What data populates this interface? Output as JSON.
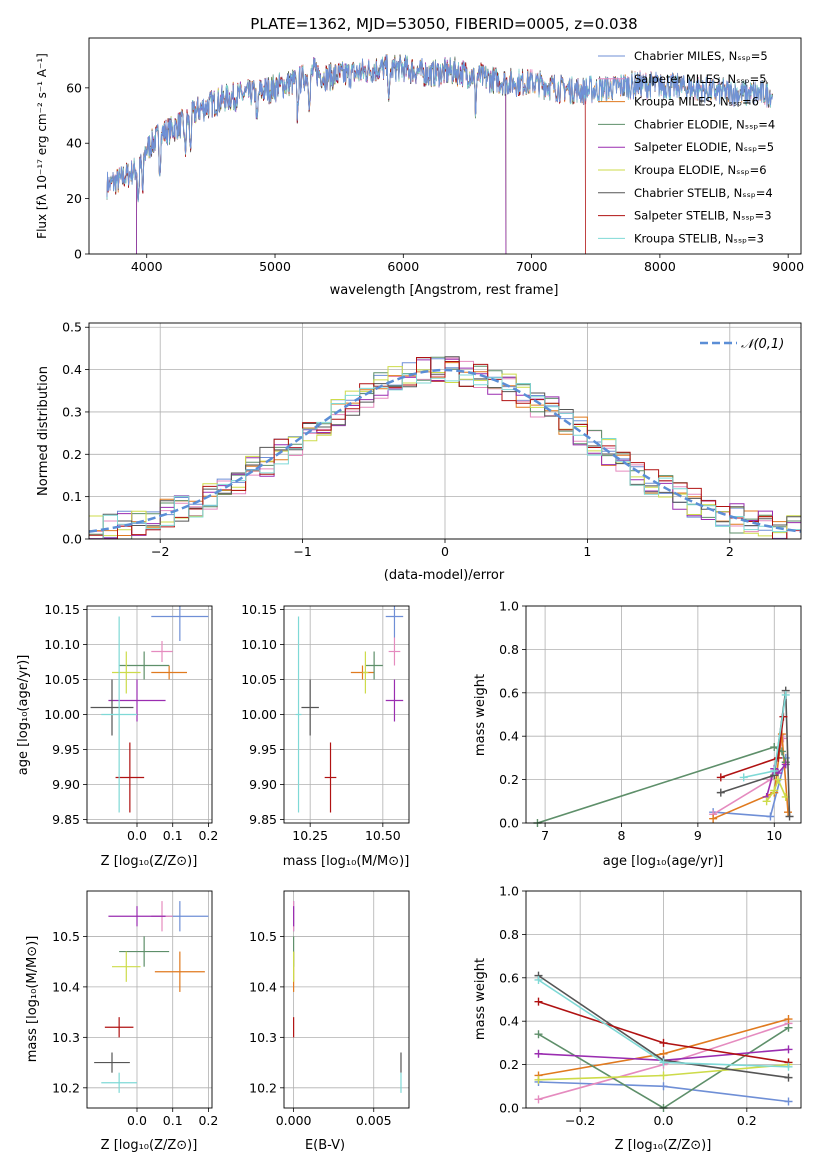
{
  "colors": [
    "#6f8fd6",
    "#e58bbf",
    "#e07a1f",
    "#5e8f6a",
    "#9a2db0",
    "#cddb4a",
    "#555555",
    "#b01212",
    "#7fd9d6"
  ],
  "chart_data": [
    {
      "id": "spectrum",
      "type": "line",
      "title": "PLATE=1362, MJD=53050, FIBERID=0005, z=0.038",
      "xlabel": "wavelength [Angstrom, rest frame]",
      "ylabel": "Flux [fλ 10⁻¹⁷ erg cm⁻² s⁻¹ A⁻¹]",
      "xlim": [
        3550,
        9100
      ],
      "ylim": [
        0,
        78
      ],
      "xticks": [
        4000,
        5000,
        6000,
        7000,
        8000,
        9000
      ],
      "yticks": [
        0,
        20,
        40,
        60
      ],
      "grid": false,
      "legend": "top-right",
      "series": [
        {
          "name": "Chabrier MILES, N_SSP=5"
        },
        {
          "name": "Salpeter MILES, N_SSP=5"
        },
        {
          "name": "Kroupa MILES, N_SSP=6"
        },
        {
          "name": "Chabrier ELODIE, N_SSP=4"
        },
        {
          "name": "Salpeter ELODIE, N_SSP=5"
        },
        {
          "name": "Kroupa ELODIE, N_SSP=6"
        },
        {
          "name": "Chabrier STELIB, N_SSP=4"
        },
        {
          "name": "Salpeter STELIB, N_SSP=3"
        },
        {
          "name": "Kroupa STELIB, N_SSP=3"
        }
      ],
      "continuum": {
        "x": [
          3700,
          3800,
          3900,
          3950,
          4000,
          4100,
          4200,
          4300,
          4400,
          4600,
          4800,
          5000,
          5200,
          5300,
          5400,
          5600,
          5800,
          6000,
          6200,
          6400,
          6600,
          6800,
          7000,
          7200,
          7400,
          7600,
          7800,
          8000,
          8200,
          8400,
          8600,
          8800
        ],
        "y": [
          25,
          27,
          30,
          32,
          38,
          43,
          45,
          48,
          52,
          56,
          58,
          60,
          63,
          66,
          64,
          65,
          67,
          67,
          65,
          66,
          64,
          62,
          62,
          60,
          59,
          60,
          61,
          61,
          60,
          59,
          58,
          58
        ]
      },
      "observed_range": [
        3690,
        8880
      ],
      "model_ranges": {
        "Kroupa ELODIE, N_SSP=6": [
          3920,
          6800
        ],
        "Salpeter STELIB, N_SSP=3": [
          3690,
          7420
        ],
        "Chabrier ELODIE, N_SSP=4": [
          3920,
          6800
        ],
        "Salpeter ELODIE, N_SSP=5": [
          3920,
          6800
        ]
      }
    },
    {
      "id": "residuals",
      "type": "histogram",
      "xlabel": "(data-model)/error",
      "ylabel": "Normed distribution",
      "xlim": [
        -2.5,
        2.5
      ],
      "ylim": [
        0,
        0.51
      ],
      "xticks": [
        -2,
        -1,
        0,
        1,
        2
      ],
      "yticks": [
        0.0,
        0.1,
        0.2,
        0.3,
        0.4,
        0.5
      ],
      "grid": true,
      "legend": "top-right",
      "reference_curve": {
        "name": "𝒩(0,1)",
        "mean": 0,
        "sigma": 1
      },
      "bin_edges_range": [
        -2.5,
        2.5
      ],
      "bin_count": 50
    },
    {
      "id": "age-vs-z",
      "type": "errorbar",
      "xlabel": "Z [log₁₀(Z/Z⊙)]",
      "ylabel": "age  [log₁₀(age/yr)]",
      "xlim": [
        -0.14,
        0.21
      ],
      "ylim": [
        9.845,
        10.155
      ],
      "xticks": [
        0.0,
        0.1,
        0.2
      ],
      "xtick_labels": [
        "0.0",
        "0.1",
        "0.2"
      ],
      "yticks": [
        9.85,
        9.9,
        9.95,
        10.0,
        10.05,
        10.1,
        10.15
      ],
      "grid": true,
      "points": [
        {
          "x": 0.12,
          "y": 10.14,
          "xerr": 0.08,
          "yerr": 0.035
        },
        {
          "x": 0.07,
          "y": 10.09,
          "xerr": 0.03,
          "yerr": 0.015
        },
        {
          "x": 0.09,
          "y": 10.06,
          "xerr": 0.05,
          "yerr": 0.01
        },
        {
          "x": 0.02,
          "y": 10.07,
          "xerr": 0.07,
          "yerr": 0.02
        },
        {
          "x": 0.0,
          "y": 10.02,
          "xerr": 0.08,
          "yerr": 0.03
        },
        {
          "x": -0.03,
          "y": 10.06,
          "xerr": 0.04,
          "yerr": 0.03
        },
        {
          "x": -0.07,
          "y": 10.01,
          "xerr": 0.06,
          "yerr": 0.04
        },
        {
          "x": -0.02,
          "y": 9.91,
          "xerr": 0.04,
          "yerr": 0.05
        },
        {
          "x": -0.05,
          "y": 10.0,
          "xerr": 0.05,
          "yerr": 0.14
        }
      ]
    },
    {
      "id": "age-vs-mass",
      "type": "errorbar",
      "xlabel": "mass [log₁₀(M/M⊙)]",
      "xlim": [
        10.16,
        10.59
      ],
      "ylim": [
        9.845,
        10.155
      ],
      "xticks": [
        10.25,
        10.5
      ],
      "xtick_labels": [
        "10.25",
        "10.50"
      ],
      "yticks": [
        9.85,
        9.9,
        9.95,
        10.0,
        10.05,
        10.1,
        10.15
      ],
      "grid": true,
      "points": [
        {
          "x": 10.54,
          "y": 10.14,
          "xerr": 0.03,
          "yerr": 0.03
        },
        {
          "x": 10.54,
          "y": 10.09,
          "xerr": 0.02,
          "yerr": 0.02
        },
        {
          "x": 10.43,
          "y": 10.06,
          "xerr": 0.04,
          "yerr": 0.01
        },
        {
          "x": 10.47,
          "y": 10.07,
          "xerr": 0.03,
          "yerr": 0.02
        },
        {
          "x": 10.54,
          "y": 10.02,
          "xerr": 0.03,
          "yerr": 0.03
        },
        {
          "x": 10.44,
          "y": 10.06,
          "xerr": 0.01,
          "yerr": 0.03
        },
        {
          "x": 10.25,
          "y": 10.01,
          "xerr": 0.03,
          "yerr": 0.04
        },
        {
          "x": 10.32,
          "y": 9.91,
          "xerr": 0.02,
          "yerr": 0.05
        },
        {
          "x": 10.21,
          "y": 10.0,
          "xerr": 0.01,
          "yerr": 0.14
        }
      ]
    },
    {
      "id": "weight-vs-age",
      "type": "line",
      "xlabel": "age  [log₁₀(age/yr)]",
      "ylabel": "mass weight",
      "xlim": [
        6.75,
        10.35
      ],
      "ylim": [
        0,
        1.0
      ],
      "xticks": [
        7,
        8,
        9,
        10
      ],
      "yticks": [
        0.0,
        0.2,
        0.4,
        0.6,
        0.8,
        1.0
      ],
      "grid": true,
      "series": [
        {
          "x": [
            9.2,
            9.95,
            10.15
          ],
          "y": [
            0.05,
            0.03,
            0.3
          ]
        },
        {
          "x": [
            9.2,
            9.95,
            10.12
          ],
          "y": [
            0.04,
            0.2,
            0.39
          ]
        },
        {
          "x": [
            9.2,
            10.0,
            10.1,
            10.18
          ],
          "y": [
            0.02,
            0.14,
            0.41,
            0.05
          ]
        },
        {
          "x": [
            6.9,
            10.0,
            10.1,
            10.15
          ],
          "y": [
            0.0,
            0.35,
            0.33,
            0.28
          ]
        },
        {
          "x": [
            9.9,
            10.0,
            10.05,
            10.15
          ],
          "y": [
            0.12,
            0.25,
            0.23,
            0.27
          ]
        },
        {
          "x": [
            9.9,
            10.0,
            10.05,
            10.15
          ],
          "y": [
            0.1,
            0.15,
            0.2,
            0.12
          ]
        },
        {
          "x": [
            9.3,
            10.0,
            10.15,
            10.2
          ],
          "y": [
            0.14,
            0.22,
            0.61,
            0.03
          ]
        },
        {
          "x": [
            9.3,
            10.05,
            10.12
          ],
          "y": [
            0.21,
            0.3,
            0.49
          ]
        },
        {
          "x": [
            9.6,
            10.0,
            10.15
          ],
          "y": [
            0.21,
            0.24,
            0.59
          ]
        }
      ]
    },
    {
      "id": "mass-vs-z",
      "type": "errorbar",
      "xlabel": "Z [log₁₀(Z/Z⊙)]",
      "ylabel": "mass [log₁₀(M/M⊙)]",
      "xlim": [
        -0.14,
        0.21
      ],
      "ylim": [
        10.16,
        10.59
      ],
      "xticks": [
        0.0,
        0.1,
        0.2
      ],
      "xtick_labels": [
        "0.0",
        "0.1",
        "0.2"
      ],
      "yticks": [
        10.2,
        10.3,
        10.4,
        10.5
      ],
      "grid": true,
      "points": [
        {
          "x": 0.12,
          "y": 10.54,
          "xerr": 0.08,
          "yerr": 0.03
        },
        {
          "x": 0.07,
          "y": 10.54,
          "xerr": 0.03,
          "yerr": 0.03
        },
        {
          "x": 0.12,
          "y": 10.43,
          "xerr": 0.07,
          "yerr": 0.04
        },
        {
          "x": 0.02,
          "y": 10.47,
          "xerr": 0.07,
          "yerr": 0.03
        },
        {
          "x": 0.0,
          "y": 10.54,
          "xerr": 0.08,
          "yerr": 0.02
        },
        {
          "x": -0.03,
          "y": 10.44,
          "xerr": 0.04,
          "yerr": 0.03
        },
        {
          "x": -0.07,
          "y": 10.25,
          "xerr": 0.05,
          "yerr": 0.02
        },
        {
          "x": -0.05,
          "y": 10.32,
          "xerr": 0.04,
          "yerr": 0.02
        },
        {
          "x": -0.05,
          "y": 10.21,
          "xerr": 0.05,
          "yerr": 0.02
        }
      ]
    },
    {
      "id": "mass-vs-ebv",
      "type": "errorbar",
      "xlabel": "E(B-V)",
      "xlim": [
        -0.0006,
        0.0072
      ],
      "ylim": [
        10.16,
        10.59
      ],
      "xticks": [
        0.0,
        0.005
      ],
      "xtick_labels": [
        "0.000",
        "0.005"
      ],
      "yticks": [
        10.2,
        10.3,
        10.4,
        10.5
      ],
      "grid": true,
      "points": [
        {
          "x": 0.0,
          "y": 10.54,
          "xerr": 0,
          "yerr": 0.03
        },
        {
          "x": 0.0,
          "y": 10.54,
          "xerr": 0,
          "yerr": 0.03
        },
        {
          "x": 0.0,
          "y": 10.43,
          "xerr": 0,
          "yerr": 0.04
        },
        {
          "x": 0.0,
          "y": 10.47,
          "xerr": 0,
          "yerr": 0.03
        },
        {
          "x": 0.0,
          "y": 10.54,
          "xerr": 0,
          "yerr": 0.02
        },
        {
          "x": 0.0,
          "y": 10.44,
          "xerr": 0,
          "yerr": 0.03
        },
        {
          "x": 0.0067,
          "y": 10.25,
          "xerr": 0,
          "yerr": 0.02
        },
        {
          "x": 0.0,
          "y": 10.32,
          "xerr": 0,
          "yerr": 0.02
        },
        {
          "x": 0.0067,
          "y": 10.21,
          "xerr": 0,
          "yerr": 0.02
        }
      ]
    },
    {
      "id": "weight-vs-z",
      "type": "line",
      "xlabel": "Z [log₁₀(Z/Z⊙)]",
      "ylabel": "mass weight",
      "xlim": [
        -0.33,
        0.33
      ],
      "ylim": [
        0,
        1.0
      ],
      "xticks": [
        -0.2,
        0.0,
        0.2
      ],
      "xtick_labels": [
        "−0.2",
        "0.0",
        "0.2"
      ],
      "yticks": [
        0.0,
        0.2,
        0.4,
        0.6,
        0.8,
        1.0
      ],
      "grid": true,
      "series": [
        {
          "x": [
            -0.3,
            0.0,
            0.3
          ],
          "y": [
            0.12,
            0.1,
            0.03
          ]
        },
        {
          "x": [
            -0.3,
            0.0,
            0.3
          ],
          "y": [
            0.04,
            0.2,
            0.39
          ]
        },
        {
          "x": [
            -0.3,
            0.0,
            0.3
          ],
          "y": [
            0.15,
            0.25,
            0.41
          ]
        },
        {
          "x": [
            -0.3,
            0.0,
            0.3
          ],
          "y": [
            0.34,
            0.0,
            0.37
          ]
        },
        {
          "x": [
            -0.3,
            0.0,
            0.3
          ],
          "y": [
            0.25,
            0.22,
            0.27
          ]
        },
        {
          "x": [
            -0.3,
            0.0,
            0.3
          ],
          "y": [
            0.13,
            0.15,
            0.2
          ]
        },
        {
          "x": [
            -0.3,
            0.0,
            0.3
          ],
          "y": [
            0.61,
            0.22,
            0.14
          ]
        },
        {
          "x": [
            -0.3,
            0.0,
            0.3
          ],
          "y": [
            0.49,
            0.3,
            0.21
          ]
        },
        {
          "x": [
            -0.3,
            0.0,
            0.3
          ],
          "y": [
            0.59,
            0.21,
            0.19
          ]
        }
      ]
    }
  ]
}
